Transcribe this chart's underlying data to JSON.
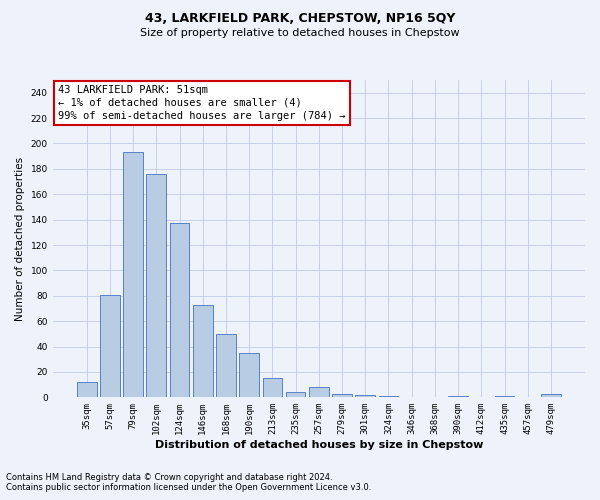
{
  "title": "43, LARKFIELD PARK, CHEPSTOW, NP16 5QY",
  "subtitle": "Size of property relative to detached houses in Chepstow",
  "xlabel": "Distribution of detached houses by size in Chepstow",
  "ylabel": "Number of detached properties",
  "categories": [
    "35sqm",
    "57sqm",
    "79sqm",
    "102sqm",
    "124sqm",
    "146sqm",
    "168sqm",
    "190sqm",
    "213sqm",
    "235sqm",
    "257sqm",
    "279sqm",
    "301sqm",
    "324sqm",
    "346sqm",
    "368sqm",
    "390sqm",
    "412sqm",
    "435sqm",
    "457sqm",
    "479sqm"
  ],
  "values": [
    12,
    81,
    193,
    176,
    137,
    73,
    50,
    35,
    15,
    4,
    8,
    3,
    2,
    1,
    0,
    0,
    1,
    0,
    1,
    0,
    3
  ],
  "bar_color": "#b8cce4",
  "bar_edge_color": "#4472c4",
  "annotation_line1": "43 LARKFIELD PARK: 51sqm",
  "annotation_line2": "← 1% of detached houses are smaller (4)",
  "annotation_line3": "99% of semi-detached houses are larger (784) →",
  "annotation_box_color": "#ffffff",
  "annotation_box_edge_color": "#cc0000",
  "grid_color": "#c8d0e8",
  "background_color": "#eef2fa",
  "ylim": [
    0,
    250
  ],
  "yticks": [
    0,
    20,
    40,
    60,
    80,
    100,
    120,
    140,
    160,
    180,
    200,
    220,
    240
  ],
  "footnote_line1": "Contains HM Land Registry data © Crown copyright and database right 2024.",
  "footnote_line2": "Contains public sector information licensed under the Open Government Licence v3.0.",
  "title_fontsize": 9,
  "subtitle_fontsize": 8,
  "xlabel_fontsize": 8,
  "ylabel_fontsize": 7.5,
  "tick_fontsize": 6.5,
  "annotation_fontsize": 7.5,
  "footnote_fontsize": 6
}
